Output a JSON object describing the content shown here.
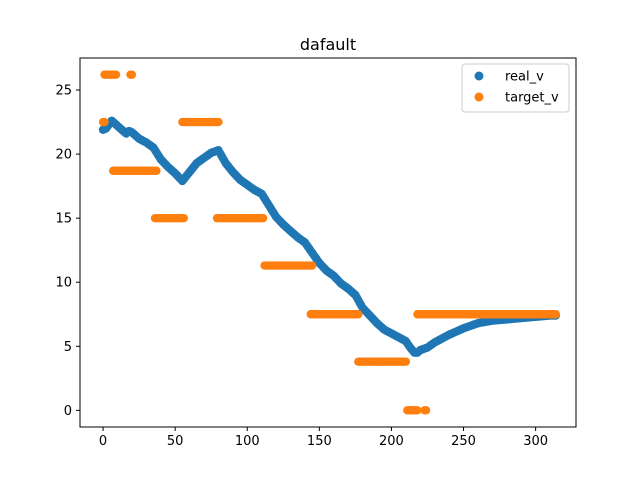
{
  "chart_data": {
    "type": "scatter",
    "title": "dafault",
    "xlabel": "",
    "ylabel": "",
    "xlim": [
      -16,
      328
    ],
    "ylim": [
      -1.3,
      27.5
    ],
    "x_ticks": [
      0,
      50,
      100,
      150,
      200,
      250,
      300
    ],
    "y_ticks": [
      0,
      5,
      10,
      15,
      20,
      25
    ],
    "grid": false,
    "legend_position": "top-right",
    "series": [
      {
        "name": "real_v",
        "color": "#1f77b4",
        "anchors": [
          [
            0,
            21.9
          ],
          [
            2,
            22.0
          ],
          [
            4,
            22.3
          ],
          [
            6,
            22.6
          ],
          [
            8,
            22.4
          ],
          [
            10,
            22.2
          ],
          [
            13,
            21.9
          ],
          [
            16,
            21.6
          ],
          [
            18,
            21.8
          ],
          [
            20,
            21.7
          ],
          [
            25,
            21.2
          ],
          [
            30,
            20.9
          ],
          [
            35,
            20.5
          ],
          [
            40,
            19.6
          ],
          [
            45,
            19.0
          ],
          [
            50,
            18.5
          ],
          [
            55,
            17.9
          ],
          [
            60,
            18.6
          ],
          [
            65,
            19.3
          ],
          [
            70,
            19.7
          ],
          [
            75,
            20.1
          ],
          [
            80,
            20.3
          ],
          [
            85,
            19.3
          ],
          [
            90,
            18.6
          ],
          [
            95,
            18.0
          ],
          [
            100,
            17.6
          ],
          [
            105,
            17.2
          ],
          [
            110,
            16.9
          ],
          [
            115,
            16.0
          ],
          [
            120,
            15.1
          ],
          [
            125,
            14.5
          ],
          [
            130,
            14.0
          ],
          [
            135,
            13.5
          ],
          [
            140,
            13.1
          ],
          [
            145,
            12.3
          ],
          [
            150,
            11.5
          ],
          [
            155,
            10.9
          ],
          [
            160,
            10.5
          ],
          [
            165,
            9.9
          ],
          [
            170,
            9.5
          ],
          [
            175,
            9.0
          ],
          [
            180,
            8.0
          ],
          [
            185,
            7.4
          ],
          [
            190,
            6.8
          ],
          [
            195,
            6.3
          ],
          [
            200,
            6.0
          ],
          [
            205,
            5.7
          ],
          [
            210,
            5.4
          ],
          [
            213,
            4.9
          ],
          [
            216,
            4.5
          ],
          [
            218,
            4.5
          ],
          [
            220,
            4.7
          ],
          [
            225,
            4.9
          ],
          [
            230,
            5.3
          ],
          [
            240,
            5.9
          ],
          [
            250,
            6.4
          ],
          [
            260,
            6.8
          ],
          [
            270,
            7.0
          ],
          [
            280,
            7.1
          ],
          [
            290,
            7.2
          ],
          [
            300,
            7.3
          ],
          [
            310,
            7.4
          ],
          [
            314,
            7.4
          ]
        ],
        "sample_step": 1
      },
      {
        "name": "target_v",
        "color": "#ff7f0e",
        "segments": [
          {
            "x_start": 0,
            "x_end": 1,
            "y": 22.5
          },
          {
            "x_start": 1,
            "x_end": 9,
            "y": 26.2
          },
          {
            "x_start": 19,
            "x_end": 20,
            "y": 26.2
          },
          {
            "x_start": 7,
            "x_end": 37,
            "y": 18.7
          },
          {
            "x_start": 36,
            "x_end": 56,
            "y": 15.0
          },
          {
            "x_start": 55,
            "x_end": 80,
            "y": 22.5
          },
          {
            "x_start": 79,
            "x_end": 111,
            "y": 15.0
          },
          {
            "x_start": 112,
            "x_end": 145,
            "y": 11.3
          },
          {
            "x_start": 144,
            "x_end": 177,
            "y": 7.5
          },
          {
            "x_start": 177,
            "x_end": 210,
            "y": 3.8
          },
          {
            "x_start": 211,
            "x_end": 218,
            "y": 0.0
          },
          {
            "x_start": 223,
            "x_end": 224,
            "y": 0.0
          },
          {
            "x_start": 218,
            "x_end": 314,
            "y": 7.5
          }
        ],
        "sample_step": 1
      }
    ]
  }
}
